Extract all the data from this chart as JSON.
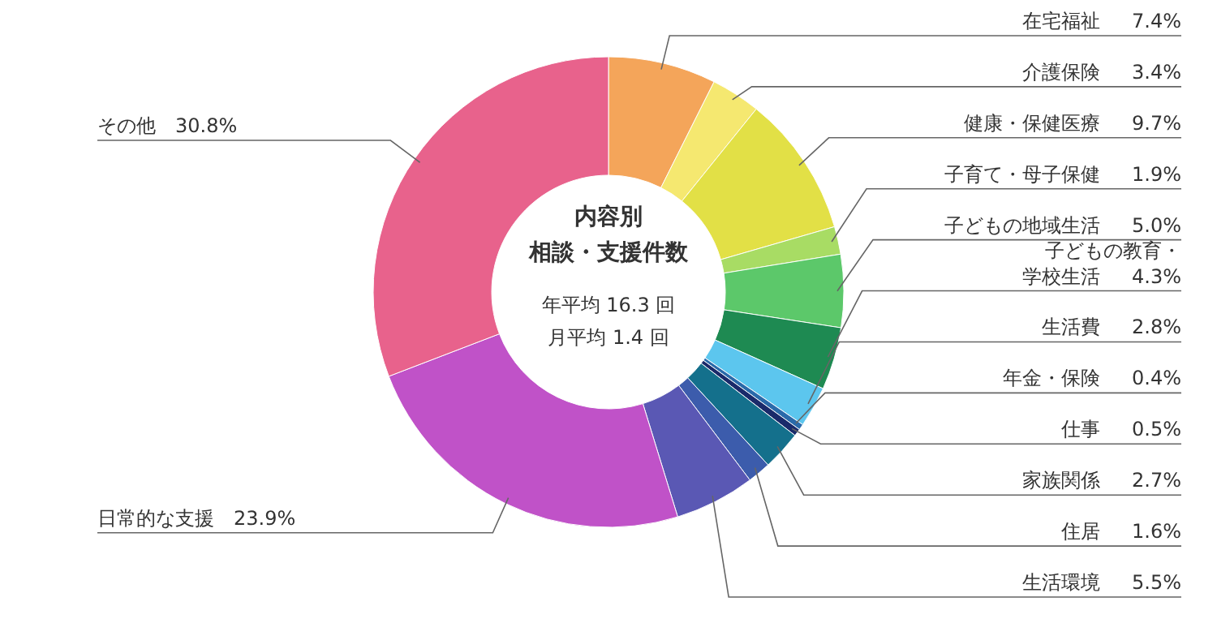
{
  "chart_data": {
    "type": "donut",
    "title": "内容別",
    "subtitle": "相談・支援件数",
    "annotations": [
      "年平均 16.3 回",
      "月平均 1.4 回"
    ],
    "categories": [
      "在宅福祉",
      "介護保険",
      "健康・保健医療",
      "子育て・母子保健",
      "子どもの地域生活",
      "子どもの教育・学校生活",
      "生活費",
      "年金・保険",
      "仕事",
      "家族関係",
      "住居",
      "生活環境",
      "日常的な支援",
      "その他"
    ],
    "values": [
      7.4,
      3.4,
      9.7,
      1.9,
      5.0,
      4.3,
      2.8,
      0.4,
      0.5,
      2.7,
      1.6,
      5.5,
      23.9,
      30.8
    ],
    "colors": [
      "#f4a55a",
      "#f5e870",
      "#e2e046",
      "#a8dc64",
      "#5cc86a",
      "#1e8a52",
      "#5cc6ee",
      "#2a6aaa",
      "#1a2a6a",
      "#14708c",
      "#3c5cac",
      "#5a58b4",
      "#c052c8",
      "#e8628c"
    ],
    "value_labels": [
      "7.4%",
      "3.4%",
      "9.7%",
      "1.9%",
      "5.0%",
      "4.3%",
      "2.8%",
      "0.4%",
      "0.5%",
      "2.7%",
      "1.6%",
      "5.5%",
      "23.9%",
      "30.8%"
    ]
  }
}
